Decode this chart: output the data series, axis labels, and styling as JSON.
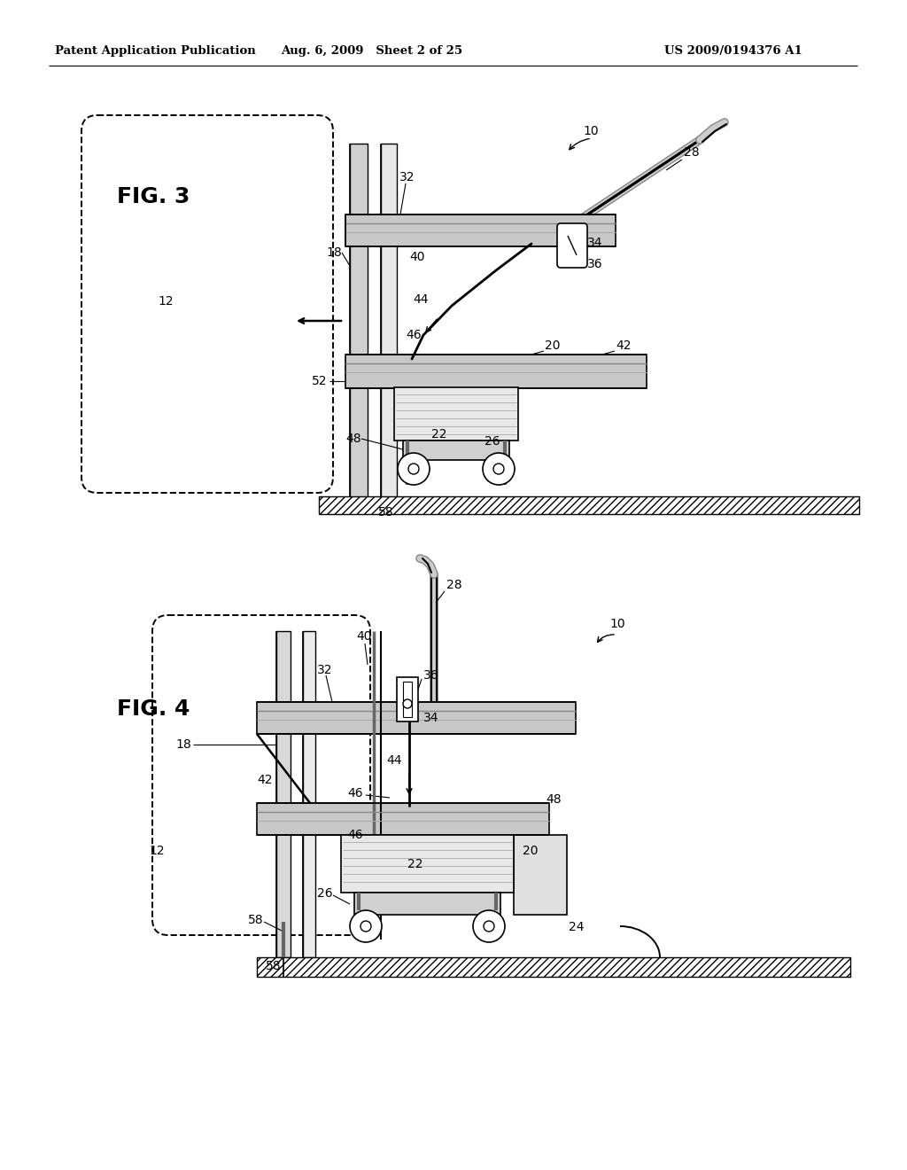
{
  "bg_color": "#ffffff",
  "line_color": "#000000",
  "header_left": "Patent Application Publication",
  "header_center": "Aug. 6, 2009   Sheet 2 of 25",
  "header_right": "US 2009/0194376 A1",
  "fig3_label": "FIG. 3",
  "fig4_label": "FIG. 4"
}
